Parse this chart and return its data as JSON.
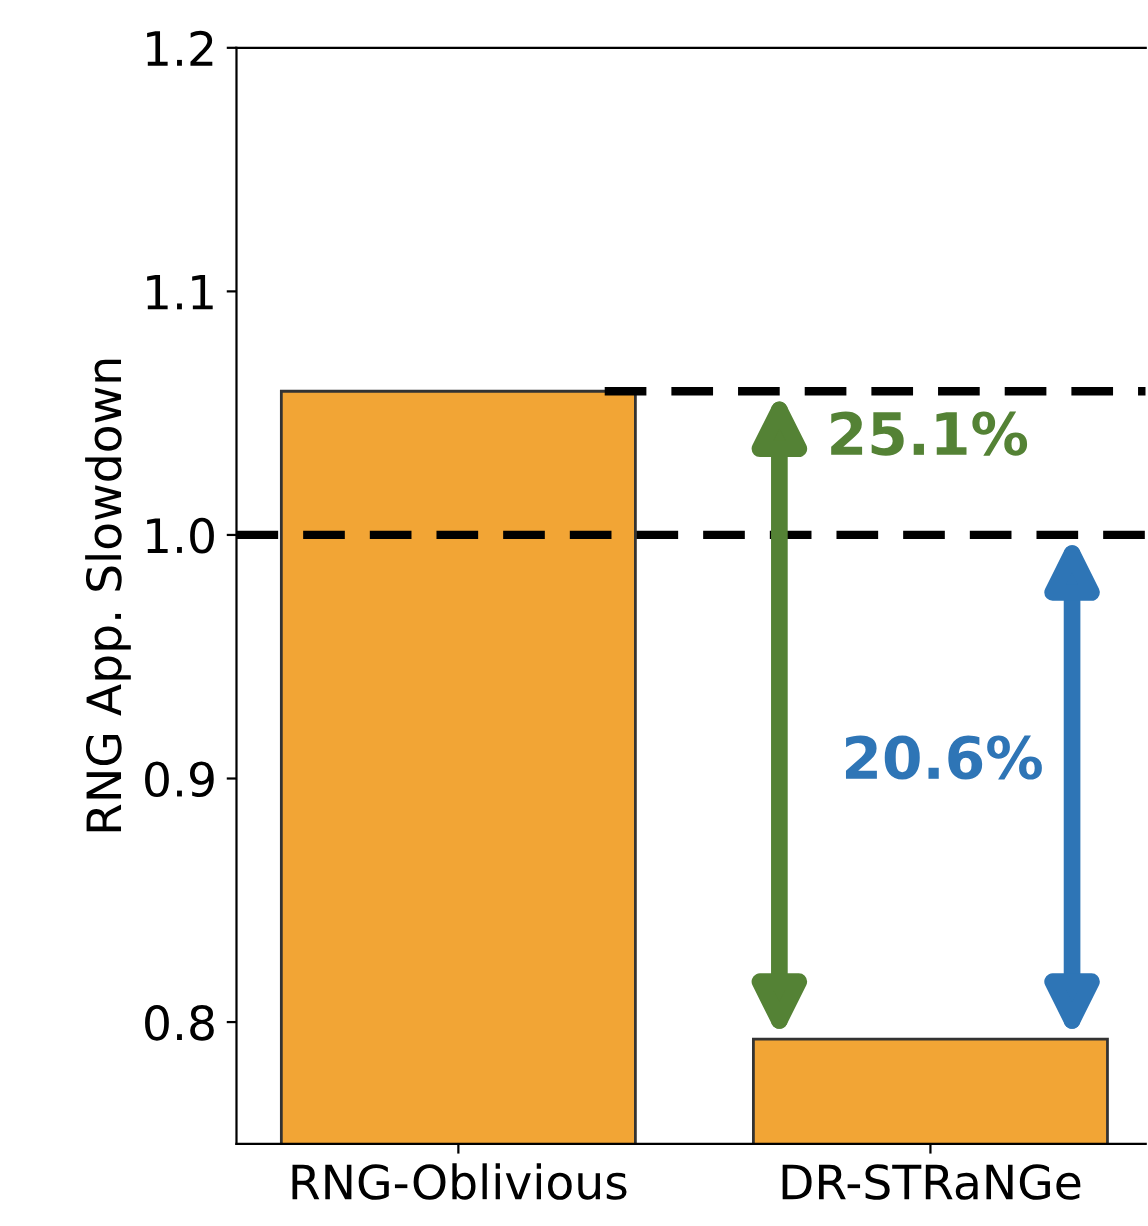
{
  "chart_data": {
    "type": "bar",
    "ylabel": "RNG App. Slowdown",
    "categories": [
      "RNG-Oblivious",
      "DR-STRaNGe"
    ],
    "values": [
      1.059,
      0.793
    ],
    "color": "#f2a535",
    "ylim": [
      0.75,
      1.2
    ],
    "yticks": [
      0.8,
      0.9,
      {
        "value": 1,
        "label": "1.0"
      },
      1.1,
      1.2
    ],
    "grid": false,
    "ref_lines": [
      {
        "axis": "y",
        "value": 1.0,
        "line_style": "dashed",
        "color": "#000000"
      },
      {
        "axis": "y",
        "value": 1.059,
        "line_style": "dashed",
        "color": "#000000"
      }
    ],
    "annotations": [
      "25.1%",
      "20.6%"
    ]
  }
}
